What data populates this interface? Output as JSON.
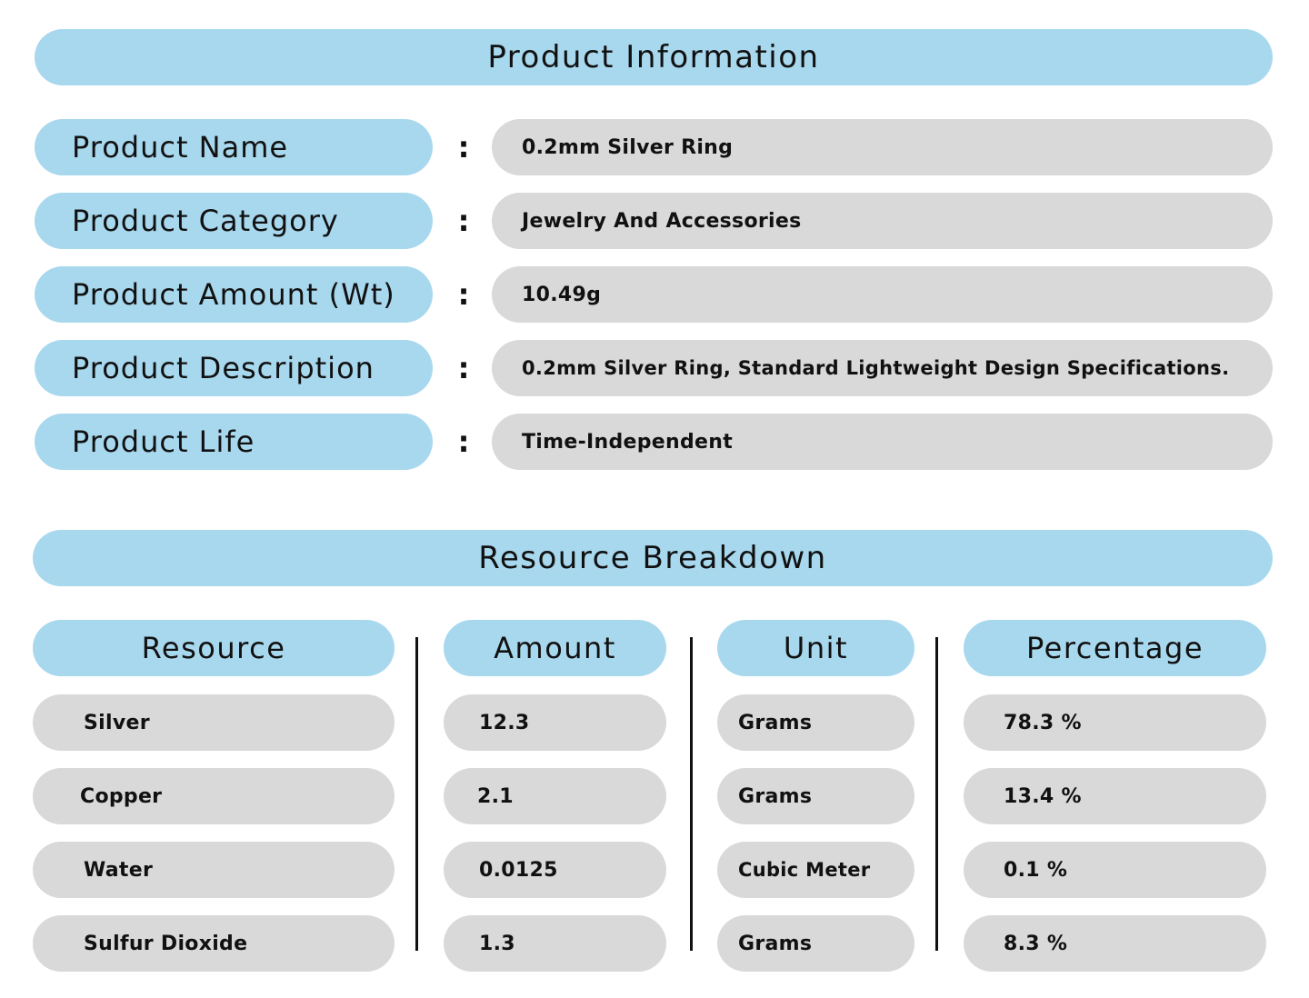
{
  "product_section": {
    "title": "Product Information",
    "colon": ":",
    "rows": [
      {
        "label": "Product Name",
        "value": "0.2mm Silver Ring"
      },
      {
        "label": "Product Category",
        "value": "Jewelry And Accessories"
      },
      {
        "label": "Product Amount (Wt)",
        "value": "10.49g"
      },
      {
        "label": "Product Description",
        "value": "0.2mm Silver Ring, Standard Lightweight Design Specifications."
      },
      {
        "label": "Product Life",
        "value": "Time-Independent"
      }
    ]
  },
  "resource_section": {
    "title": "Resource Breakdown",
    "headers": [
      "Resource",
      "Amount",
      "Unit",
      "Percentage"
    ],
    "rows": [
      {
        "resource": "Silver",
        "amount": "12.3",
        "unit": "Grams",
        "percentage": "78.3 %"
      },
      {
        "resource": "Copper",
        "amount": "2.1",
        "unit": "Grams",
        "percentage": "13.4 %"
      },
      {
        "resource": "Water",
        "amount": "0.0125",
        "unit": "Cubic Meter",
        "percentage": "0.1 %"
      },
      {
        "resource": "Sulfur Dioxide",
        "amount": "1.3",
        "unit": "Grams",
        "percentage": "8.3 %"
      }
    ]
  },
  "colors": {
    "header_blue": "#a8d8ee",
    "cell_gray": "#d9d9d9",
    "text": "#111111"
  }
}
